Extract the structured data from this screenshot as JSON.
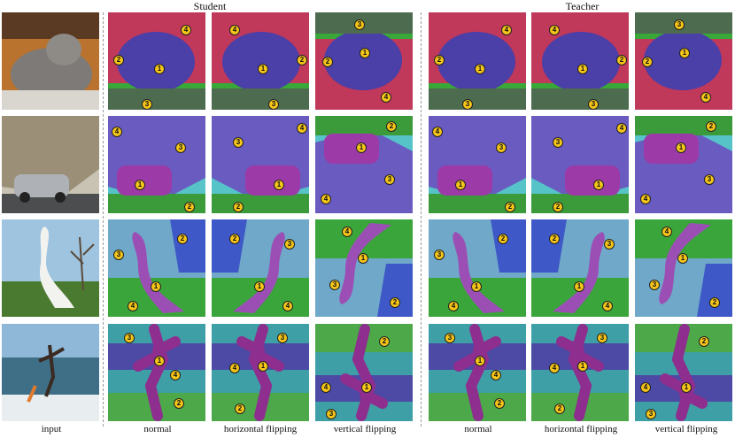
{
  "headers": {
    "student": "Student",
    "teacher": "Teacher"
  },
  "columns": [
    "input",
    "normal",
    "horizontal flipping",
    "vertical flipping",
    "normal",
    "horizontal flipping",
    "vertical flipping"
  ],
  "rows": [
    {
      "subject": "cat",
      "colors": {
        "1": "#4b3fa8",
        "2": "#c0385a",
        "3": "#4d6b4f",
        "4": "#39a838"
      }
    },
    {
      "subject": "car",
      "colors": {
        "1": "#9c3aa8",
        "2": "#3b9a3a",
        "3": "#6a5bc0",
        "4": "#56c3c9"
      }
    },
    {
      "subject": "bird",
      "colors": {
        "1": "#9b4fb5",
        "2": "#3f58c8",
        "3": "#6fa8c8",
        "4": "#3aa53a"
      }
    },
    {
      "subject": "kitesurfer",
      "colors": {
        "1": "#8e2e8e",
        "2": "#3ea0a6",
        "3": "#4c4aa5",
        "4": "#4da84a"
      }
    }
  ],
  "segment_labels": [
    "1",
    "2",
    "3",
    "4"
  ]
}
